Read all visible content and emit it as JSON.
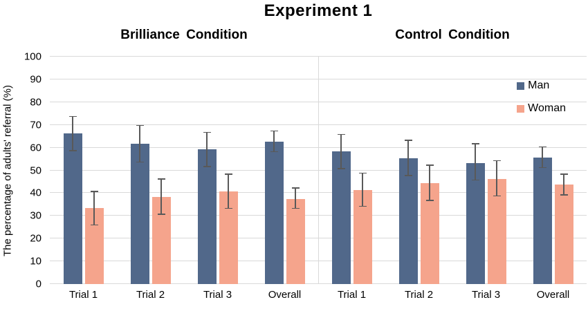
{
  "title": "Experiment 1",
  "ylabel": "The percentage of adults' referral (%)",
  "chart_data": {
    "type": "bar",
    "title": "Experiment 1",
    "ylabel": "The percentage of adults' referral (%)",
    "ylim": [
      0,
      100
    ],
    "yticks": [
      0,
      10,
      20,
      30,
      40,
      50,
      60,
      70,
      80,
      90,
      100
    ],
    "grid": true,
    "legend_position": "top-right",
    "bar_colors": {
      "Man": "#51688a",
      "Woman": "#f5a48c"
    },
    "error_bar_color": "#595959",
    "gridline_color": "#d9d9d9",
    "panels": [
      {
        "header": "Brilliance Condition",
        "categories": [
          "Trial 1",
          "Trial 2",
          "Trial 3",
          "Overall"
        ],
        "series": [
          {
            "name": "Man",
            "values": [
              66.4,
              61.8,
              59.4,
              62.6
            ],
            "error_low": [
              58.5,
              53.5,
              51.5,
              58.0
            ],
            "error_high": [
              74.0,
              70.0,
              67.0,
              67.5
            ]
          },
          {
            "name": "Woman",
            "values": [
              33.3,
              38.3,
              40.7,
              37.3
            ],
            "error_low": [
              25.8,
              30.5,
              33.0,
              33.0
            ],
            "error_high": [
              41.0,
              46.5,
              48.5,
              42.5
            ]
          }
        ]
      },
      {
        "header": "Control Condition",
        "categories": [
          "Trial 1",
          "Trial 2",
          "Trial 3",
          "Overall"
        ],
        "series": [
          {
            "name": "Man",
            "values": [
              58.5,
              55.3,
              53.3,
              55.7
            ],
            "error_low": [
              50.5,
              47.5,
              45.5,
              51.0
            ],
            "error_high": [
              66.0,
              63.5,
              62.0,
              60.5
            ]
          },
          {
            "name": "Woman",
            "values": [
              41.3,
              44.3,
              46.3,
              43.9
            ],
            "error_low": [
              34.0,
              36.5,
              38.5,
              39.0
            ],
            "error_high": [
              49.0,
              52.5,
              54.5,
              48.5
            ]
          }
        ]
      }
    ]
  }
}
